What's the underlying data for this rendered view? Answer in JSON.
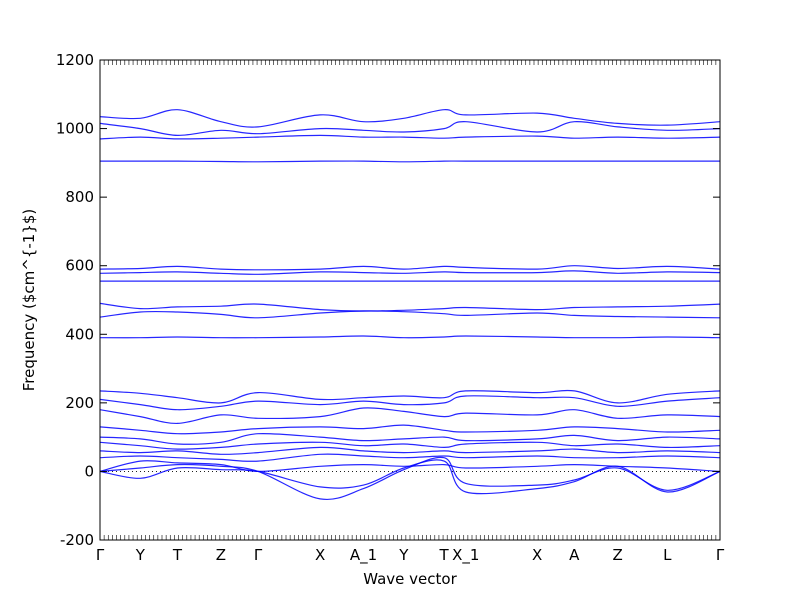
{
  "chart_data": {
    "type": "line",
    "title": "",
    "xlabel": "Wave vector",
    "ylabel": "Frequency ($cm^{-1}$)",
    "ylim": [
      -200,
      1200
    ],
    "yticks": [
      -200,
      0,
      200,
      400,
      600,
      800,
      1000,
      1200
    ],
    "x_labels": [
      "Γ",
      "Y",
      "T",
      "Z",
      "Γ",
      "X",
      "A_1",
      "Y",
      "T",
      "X_1",
      "X",
      "A",
      "Z",
      "L",
      "Γ"
    ],
    "x_positions": [
      0,
      0.065,
      0.125,
      0.195,
      0.255,
      0.355,
      0.425,
      0.49,
      0.555,
      0.59,
      0.705,
      0.765,
      0.835,
      0.915,
      1.0
    ],
    "zero_line": {
      "value": 0,
      "style": "dotted"
    },
    "line_color": "#0000ff",
    "grid": false,
    "legend": "none",
    "series": [
      {
        "x": [
          0,
          0.065,
          0.125,
          0.195,
          0.255,
          0.355,
          0.425,
          0.49,
          0.555,
          0.59,
          0.705,
          0.765,
          0.835,
          0.915,
          1.0
        ],
        "y": [
          1035,
          1030,
          1055,
          1020,
          1005,
          1040,
          1020,
          1030,
          1055,
          1040,
          1045,
          1030,
          1015,
          1010,
          1020
        ]
      },
      {
        "x": [
          0,
          0.065,
          0.125,
          0.195,
          0.255,
          0.355,
          0.425,
          0.49,
          0.555,
          0.59,
          0.705,
          0.765,
          0.835,
          0.915,
          1.0
        ],
        "y": [
          1015,
          1000,
          980,
          995,
          985,
          1000,
          995,
          990,
          1000,
          1020,
          990,
          1020,
          1005,
          995,
          1000
        ]
      },
      {
        "x": [
          0,
          0.065,
          0.125,
          0.195,
          0.255,
          0.355,
          0.425,
          0.49,
          0.555,
          0.59,
          0.705,
          0.765,
          0.835,
          0.915,
          1.0
        ],
        "y": [
          970,
          975,
          970,
          972,
          975,
          980,
          975,
          975,
          972,
          975,
          978,
          972,
          975,
          972,
          975
        ]
      },
      {
        "x": [
          0,
          0.065,
          0.125,
          0.195,
          0.255,
          0.355,
          0.425,
          0.49,
          0.555,
          0.59,
          0.705,
          0.765,
          0.835,
          0.915,
          1.0
        ],
        "y": [
          905,
          905,
          905,
          904,
          903,
          905,
          905,
          903,
          905,
          905,
          905,
          905,
          905,
          905,
          905
        ]
      },
      {
        "x": [
          0,
          0.065,
          0.125,
          0.195,
          0.255,
          0.355,
          0.425,
          0.49,
          0.555,
          0.59,
          0.705,
          0.765,
          0.835,
          0.915,
          1.0
        ],
        "y": [
          590,
          592,
          598,
          590,
          588,
          590,
          598,
          590,
          598,
          595,
          590,
          600,
          592,
          598,
          590
        ]
      },
      {
        "x": [
          0,
          0.065,
          0.125,
          0.195,
          0.255,
          0.355,
          0.425,
          0.49,
          0.555,
          0.59,
          0.705,
          0.765,
          0.835,
          0.915,
          1.0
        ],
        "y": [
          578,
          580,
          582,
          578,
          575,
          582,
          580,
          578,
          582,
          580,
          580,
          585,
          578,
          582,
          580
        ]
      },
      {
        "x": [
          0,
          0.065,
          0.125,
          0.195,
          0.255,
          0.355,
          0.425,
          0.49,
          0.555,
          0.59,
          0.705,
          0.765,
          0.835,
          0.915,
          1.0
        ],
        "y": [
          555,
          555,
          555,
          555,
          555,
          555,
          555,
          555,
          555,
          555,
          555,
          555,
          555,
          555,
          555
        ]
      },
      {
        "x": [
          0,
          0.065,
          0.125,
          0.195,
          0.255,
          0.355,
          0.425,
          0.49,
          0.555,
          0.59,
          0.705,
          0.765,
          0.835,
          0.915,
          1.0
        ],
        "y": [
          490,
          475,
          480,
          482,
          488,
          472,
          468,
          470,
          475,
          478,
          472,
          478,
          480,
          482,
          488
        ]
      },
      {
        "x": [
          0,
          0.065,
          0.125,
          0.195,
          0.255,
          0.355,
          0.425,
          0.49,
          0.555,
          0.59,
          0.705,
          0.765,
          0.835,
          0.915,
          1.0
        ],
        "y": [
          450,
          465,
          465,
          458,
          448,
          462,
          468,
          466,
          460,
          455,
          462,
          455,
          452,
          450,
          448
        ]
      },
      {
        "x": [
          0,
          0.065,
          0.125,
          0.195,
          0.255,
          0.355,
          0.425,
          0.49,
          0.555,
          0.59,
          0.705,
          0.765,
          0.835,
          0.915,
          1.0
        ],
        "y": [
          390,
          390,
          392,
          390,
          390,
          392,
          395,
          390,
          392,
          395,
          392,
          390,
          390,
          392,
          390
        ]
      },
      {
        "x": [
          0,
          0.065,
          0.125,
          0.195,
          0.255,
          0.355,
          0.425,
          0.49,
          0.555,
          0.59,
          0.705,
          0.765,
          0.835,
          0.915,
          1.0
        ],
        "y": [
          235,
          228,
          215,
          200,
          230,
          210,
          215,
          220,
          215,
          235,
          230,
          235,
          200,
          225,
          235
        ]
      },
      {
        "x": [
          0,
          0.065,
          0.125,
          0.195,
          0.255,
          0.355,
          0.425,
          0.49,
          0.555,
          0.59,
          0.705,
          0.765,
          0.835,
          0.915,
          1.0
        ],
        "y": [
          210,
          195,
          180,
          190,
          205,
          195,
          205,
          195,
          200,
          220,
          215,
          215,
          190,
          205,
          215
        ]
      },
      {
        "x": [
          0,
          0.065,
          0.125,
          0.195,
          0.255,
          0.355,
          0.425,
          0.49,
          0.555,
          0.59,
          0.705,
          0.765,
          0.835,
          0.915,
          1.0
        ],
        "y": [
          180,
          160,
          140,
          165,
          155,
          160,
          185,
          175,
          160,
          170,
          165,
          180,
          155,
          165,
          160
        ]
      },
      {
        "x": [
          0,
          0.065,
          0.125,
          0.195,
          0.255,
          0.355,
          0.425,
          0.49,
          0.555,
          0.59,
          0.705,
          0.765,
          0.835,
          0.915,
          1.0
        ],
        "y": [
          130,
          120,
          110,
          115,
          125,
          130,
          125,
          135,
          120,
          115,
          120,
          130,
          125,
          115,
          120
        ]
      },
      {
        "x": [
          0,
          0.065,
          0.125,
          0.195,
          0.255,
          0.355,
          0.425,
          0.49,
          0.555,
          0.59,
          0.705,
          0.765,
          0.835,
          0.915,
          1.0
        ],
        "y": [
          100,
          95,
          80,
          85,
          110,
          100,
          90,
          95,
          100,
          90,
          95,
          105,
          90,
          100,
          95
        ]
      },
      {
        "x": [
          0,
          0.065,
          0.125,
          0.195,
          0.255,
          0.355,
          0.425,
          0.49,
          0.555,
          0.59,
          0.705,
          0.765,
          0.835,
          0.915,
          1.0
        ],
        "y": [
          85,
          75,
          65,
          70,
          80,
          85,
          75,
          80,
          70,
          80,
          85,
          75,
          80,
          70,
          75
        ]
      },
      {
        "x": [
          0,
          0.065,
          0.125,
          0.195,
          0.255,
          0.355,
          0.425,
          0.49,
          0.555,
          0.59,
          0.705,
          0.765,
          0.835,
          0.915,
          1.0
        ],
        "y": [
          60,
          55,
          60,
          50,
          55,
          70,
          60,
          55,
          60,
          55,
          60,
          65,
          55,
          60,
          55
        ]
      },
      {
        "x": [
          0,
          0.065,
          0.125,
          0.195,
          0.255,
          0.355,
          0.425,
          0.49,
          0.555,
          0.59,
          0.705,
          0.765,
          0.835,
          0.915,
          1.0
        ],
        "y": [
          40,
          45,
          40,
          35,
          30,
          50,
          45,
          40,
          45,
          40,
          45,
          40,
          40,
          45,
          40
        ]
      },
      {
        "x": [
          0,
          0.065,
          0.125,
          0.195,
          0.255,
          0.355,
          0.425,
          0.49,
          0.555,
          0.59,
          0.705,
          0.765,
          0.835,
          0.915,
          1.0
        ],
        "y": [
          0,
          30,
          25,
          20,
          0,
          15,
          20,
          15,
          20,
          10,
          15,
          20,
          15,
          10,
          0
        ]
      },
      {
        "x": [
          0,
          0.065,
          0.125,
          0.195,
          0.255,
          0.355,
          0.425,
          0.49,
          0.555,
          0.59,
          0.705,
          0.765,
          0.835,
          0.915,
          1.0
        ],
        "y": [
          0,
          -20,
          10,
          5,
          0,
          -45,
          -40,
          10,
          30,
          -60,
          -50,
          -30,
          15,
          -60,
          0
        ]
      },
      {
        "x": [
          0,
          0.065,
          0.125,
          0.195,
          0.255,
          0.355,
          0.425,
          0.49,
          0.555,
          0.59,
          0.705,
          0.765,
          0.835,
          0.915,
          1.0
        ],
        "y": [
          0,
          10,
          20,
          15,
          0,
          -80,
          -50,
          5,
          40,
          -35,
          -40,
          -25,
          10,
          -55,
          0
        ]
      }
    ]
  }
}
